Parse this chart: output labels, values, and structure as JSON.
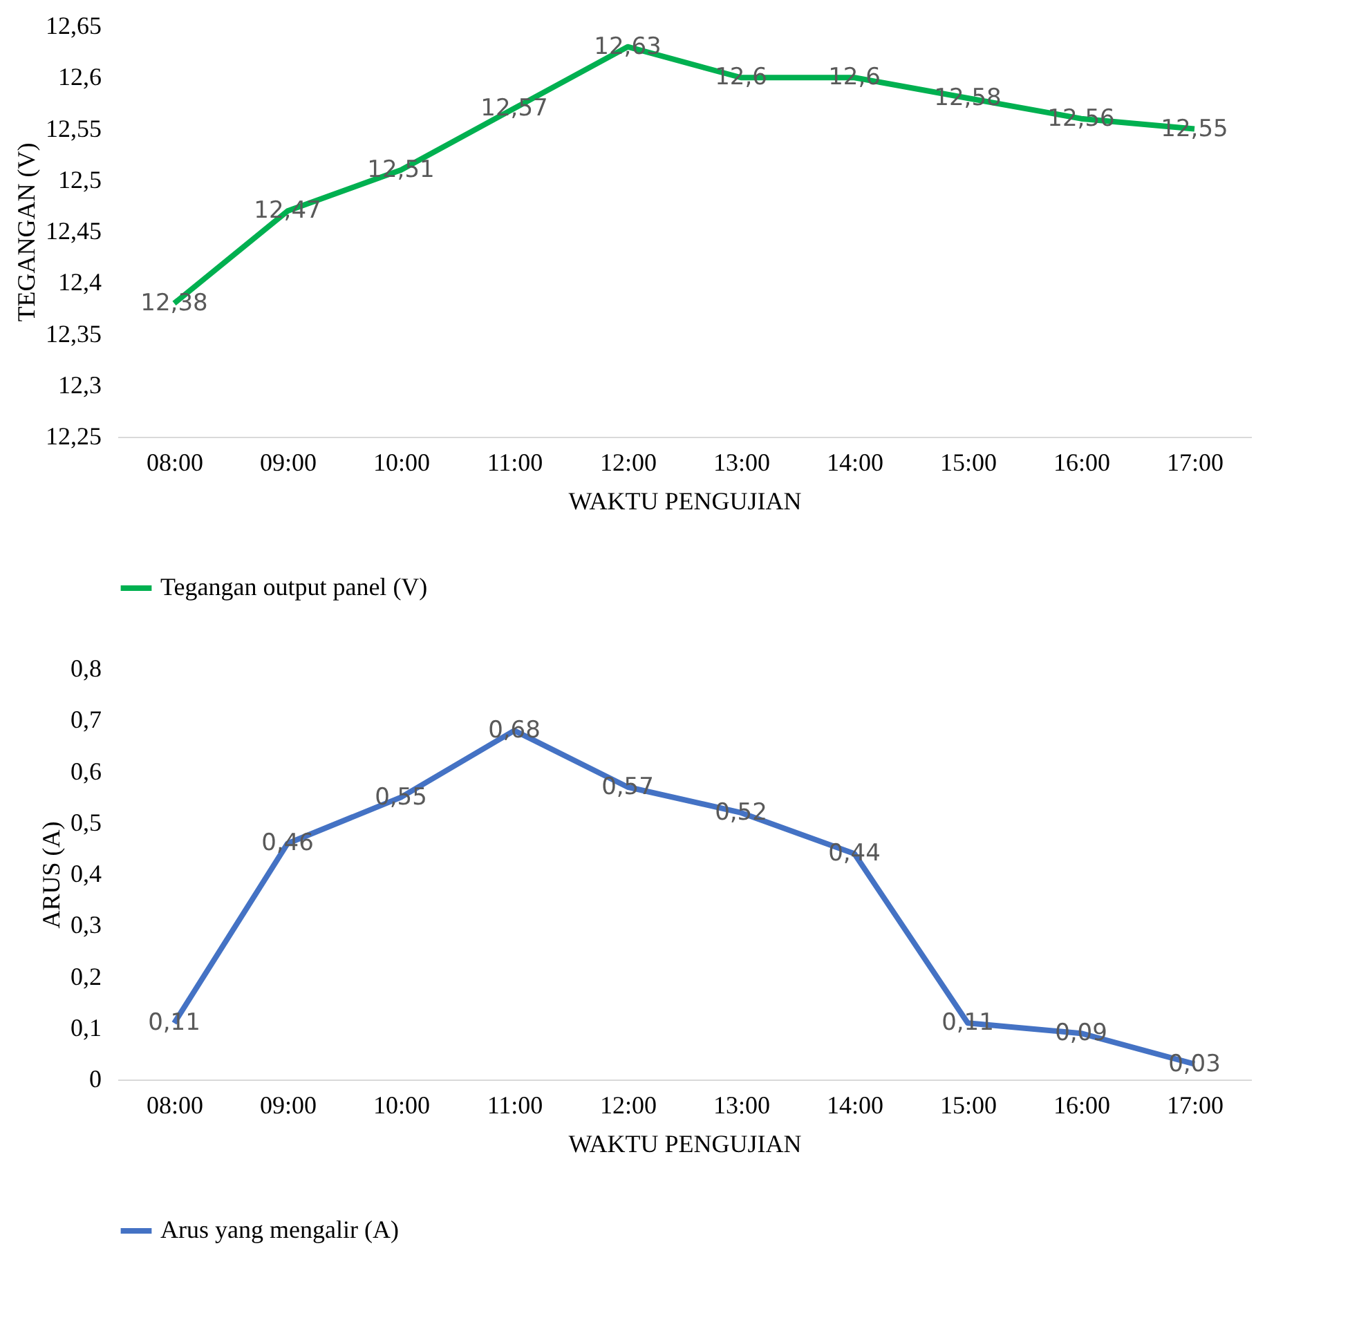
{
  "chart_data": [
    {
      "type": "line",
      "xlabel": "WAKTU PENGUJIAN",
      "ylabel": "TEGANGAN (V)",
      "categories": [
        "08:00",
        "09:00",
        "10:00",
        "11:00",
        "12:00",
        "13:00",
        "14:00",
        "15:00",
        "16:00",
        "17:00"
      ],
      "series": [
        {
          "name": "Tegangan output panel (V)",
          "color": "#00b050",
          "values": [
            12.38,
            12.47,
            12.51,
            12.57,
            12.63,
            12.6,
            12.6,
            12.58,
            12.56,
            12.55
          ],
          "value_labels": [
            "12,38",
            "12,47",
            "12,51",
            "12,57",
            "12,63",
            "12,6",
            "12,6",
            "12,58",
            "12,56",
            "12,55"
          ]
        }
      ],
      "ylim": [
        12.25,
        12.65
      ],
      "yticks": [
        {
          "value": 12.25,
          "label": "12,25"
        },
        {
          "value": 12.3,
          "label": "12,3"
        },
        {
          "value": 12.35,
          "label": "12,35"
        },
        {
          "value": 12.4,
          "label": "12,4"
        },
        {
          "value": 12.45,
          "label": "12,45"
        },
        {
          "value": 12.5,
          "label": "12,5"
        },
        {
          "value": 12.55,
          "label": "12,55"
        },
        {
          "value": 12.6,
          "label": "12,6"
        },
        {
          "value": 12.65,
          "label": "12,65"
        }
      ],
      "legend": "bottom",
      "grid": false,
      "marker": "none"
    },
    {
      "type": "line",
      "xlabel": "WAKTU PENGUJIAN",
      "ylabel": "ARUS (A)",
      "categories": [
        "08:00",
        "09:00",
        "10:00",
        "11:00",
        "12:00",
        "13:00",
        "14:00",
        "15:00",
        "16:00",
        "17:00"
      ],
      "series": [
        {
          "name": "Arus yang mengalir (A)",
          "color": "#4472c4",
          "values": [
            0.11,
            0.46,
            0.55,
            0.68,
            0.57,
            0.52,
            0.44,
            0.11,
            0.09,
            0.03
          ],
          "value_labels": [
            "0,11",
            "0,46",
            "0,55",
            "0,68",
            "0,57",
            "0,52",
            "0,44",
            "0,11",
            "0,09",
            "0,03"
          ]
        }
      ],
      "ylim": [
        0,
        0.8
      ],
      "yticks": [
        0,
        {
          "value": 0.1,
          "label": "0,1"
        },
        {
          "value": 0.2,
          "label": "0,2"
        },
        {
          "value": 0.3,
          "label": "0,3"
        },
        {
          "value": 0.4,
          "label": "0,4"
        },
        {
          "value": 0.5,
          "label": "0,5"
        },
        {
          "value": 0.6,
          "label": "0,6"
        },
        {
          "value": 0.7,
          "label": "0,7"
        },
        {
          "value": 0.8,
          "label": "0,8"
        }
      ],
      "legend": "bottom",
      "grid": false,
      "marker": "none"
    }
  ]
}
